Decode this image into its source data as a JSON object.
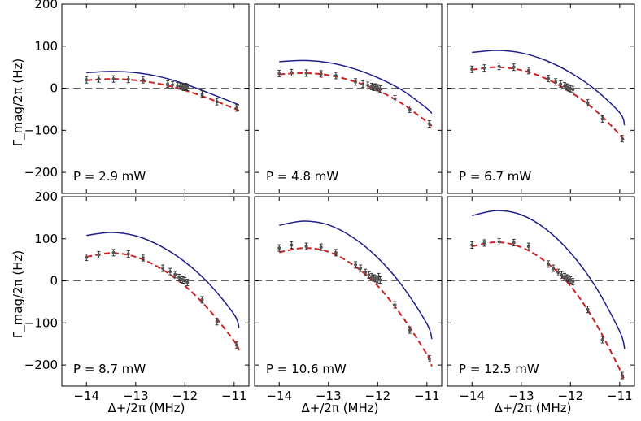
{
  "figure": {
    "ylabel": "Γ_mag/2π (Hz)",
    "xlabel": "Δ+/2π (MHz)"
  },
  "chart_data": [
    {
      "type": "line",
      "power_label": "P = 2.9 mW",
      "xlim": [
        -14.5,
        -10.7
      ],
      "ylim": [
        -250,
        200
      ],
      "x_ticks": [
        -14,
        -13,
        -12,
        -11
      ],
      "y_ticks": [
        -200,
        -100,
        0,
        100,
        200
      ],
      "series": [
        {
          "style": "solid",
          "color": "#1f1f8a",
          "x": [
            -14.0,
            -13.5,
            -13.0,
            -12.5,
            -12.0,
            -11.5,
            -11.0,
            -10.9
          ],
          "y": [
            37,
            40,
            37,
            27,
            10,
            -12,
            -35,
            -40
          ]
        },
        {
          "style": "dashed",
          "color": "#cc2222",
          "x": [
            -14.0,
            -13.5,
            -13.0,
            -12.5,
            -12.0,
            -11.5,
            -11.0,
            -10.9
          ],
          "y": [
            19,
            22,
            19,
            10,
            -5,
            -25,
            -48,
            -53
          ]
        },
        {
          "style": "points",
          "color": "#555555",
          "x": [
            -14.0,
            -13.75,
            -13.45,
            -13.15,
            -12.85,
            -12.35,
            -12.25,
            -12.15,
            -12.1,
            -12.05,
            -12.02,
            -11.98,
            -11.95,
            -11.65,
            -11.35,
            -10.95
          ],
          "y": [
            20,
            22,
            22,
            21,
            20,
            10,
            8,
            6,
            5,
            3,
            2,
            4,
            2,
            -14,
            -32,
            -47
          ]
        }
      ]
    },
    {
      "type": "line",
      "power_label": "P = 4.8 mW",
      "xlim": [
        -14.5,
        -10.7
      ],
      "ylim": [
        -250,
        200
      ],
      "x_ticks": [
        -14,
        -13,
        -12,
        -11
      ],
      "y_ticks": [
        -200,
        -100,
        0,
        100,
        200
      ],
      "series": [
        {
          "style": "solid",
          "color": "#1f1f8a",
          "x": [
            -14.0,
            -13.5,
            -13.0,
            -12.5,
            -12.0,
            -11.5,
            -11.0,
            -10.9
          ],
          "y": [
            63,
            66,
            61,
            47,
            25,
            -5,
            -48,
            -60
          ]
        },
        {
          "style": "dashed",
          "color": "#cc2222",
          "x": [
            -14.0,
            -13.5,
            -13.0,
            -12.5,
            -12.0,
            -11.5,
            -11.0,
            -10.9
          ],
          "y": [
            33,
            36,
            31,
            17,
            -5,
            -37,
            -80,
            -90
          ]
        },
        {
          "style": "points",
          "color": "#555555",
          "x": [
            -14.0,
            -13.75,
            -13.45,
            -13.15,
            -12.85,
            -12.45,
            -12.3,
            -12.2,
            -12.12,
            -12.08,
            -12.04,
            -12.0,
            -11.95,
            -11.65,
            -11.35,
            -10.95
          ],
          "y": [
            35,
            37,
            36,
            34,
            30,
            15,
            10,
            7,
            4,
            2,
            3,
            1,
            -2,
            -25,
            -50,
            -85
          ]
        }
      ]
    },
    {
      "type": "line",
      "power_label": "P = 6.7 mW",
      "xlim": [
        -14.5,
        -10.7
      ],
      "ylim": [
        -250,
        200
      ],
      "x_ticks": [
        -14,
        -13,
        -12,
        -11
      ],
      "y_ticks": [
        -200,
        -100,
        0,
        100,
        200
      ],
      "series": [
        {
          "style": "solid",
          "color": "#1f1f8a",
          "x": [
            -14.0,
            -13.5,
            -13.0,
            -12.5,
            -12.0,
            -11.5,
            -11.0,
            -10.9
          ],
          "y": [
            85,
            90,
            84,
            66,
            37,
            -3,
            -58,
            -88
          ]
        },
        {
          "style": "dashed",
          "color": "#cc2222",
          "x": [
            -14.0,
            -13.5,
            -13.0,
            -12.5,
            -12.0,
            -11.5,
            -11.0,
            -10.9
          ],
          "y": [
            44,
            50,
            43,
            23,
            -9,
            -52,
            -110,
            -128
          ]
        },
        {
          "style": "points",
          "color": "#555555",
          "x": [
            -14.0,
            -13.75,
            -13.45,
            -13.15,
            -12.85,
            -12.45,
            -12.3,
            -12.2,
            -12.12,
            -12.08,
            -12.04,
            -12.0,
            -11.95,
            -11.65,
            -11.35,
            -10.95
          ],
          "y": [
            45,
            48,
            52,
            50,
            42,
            23,
            15,
            10,
            6,
            3,
            1,
            -1,
            -3,
            -35,
            -73,
            -120
          ]
        }
      ]
    },
    {
      "type": "line",
      "power_label": "P = 8.7 mW",
      "xlim": [
        -14.5,
        -10.7
      ],
      "ylim": [
        -250,
        200
      ],
      "x_ticks": [
        -14,
        -13,
        -12,
        -11
      ],
      "y_ticks": [
        -200,
        -100,
        0,
        100,
        200
      ],
      "series": [
        {
          "style": "solid",
          "color": "#1f1f8a",
          "x": [
            -14.0,
            -13.5,
            -13.0,
            -12.5,
            -12.0,
            -11.5,
            -11.0,
            -10.9
          ],
          "y": [
            108,
            115,
            107,
            83,
            45,
            -8,
            -80,
            -112
          ]
        },
        {
          "style": "dashed",
          "color": "#cc2222",
          "x": [
            -14.0,
            -13.5,
            -13.0,
            -12.5,
            -12.0,
            -11.5,
            -11.0,
            -10.9
          ],
          "y": [
            57,
            66,
            57,
            30,
            -12,
            -70,
            -143,
            -165
          ]
        },
        {
          "style": "points",
          "color": "#555555",
          "x": [
            -14.0,
            -13.75,
            -13.45,
            -13.15,
            -12.85,
            -12.45,
            -12.3,
            -12.2,
            -12.12,
            -12.08,
            -12.04,
            -12.0,
            -11.95,
            -11.65,
            -11.35,
            -10.95
          ],
          "y": [
            56,
            62,
            67,
            64,
            55,
            30,
            22,
            15,
            8,
            4,
            2,
            0,
            -4,
            -45,
            -97,
            -153
          ]
        }
      ]
    },
    {
      "type": "line",
      "power_label": "P = 10.6 mW",
      "xlim": [
        -14.5,
        -10.7
      ],
      "ylim": [
        -250,
        200
      ],
      "x_ticks": [
        -14,
        -13,
        -12,
        -11
      ],
      "y_ticks": [
        -200,
        -100,
        0,
        100,
        200
      ],
      "series": [
        {
          "style": "solid",
          "color": "#1f1f8a",
          "x": [
            -14.0,
            -13.5,
            -13.0,
            -12.5,
            -12.0,
            -11.5,
            -11.0,
            -10.9
          ],
          "y": [
            132,
            142,
            133,
            103,
            55,
            -12,
            -102,
            -138
          ]
        },
        {
          "style": "dashed",
          "color": "#cc2222",
          "x": [
            -14.0,
            -13.5,
            -13.0,
            -12.5,
            -12.0,
            -11.5,
            -11.0,
            -10.9
          ],
          "y": [
            68,
            78,
            69,
            38,
            -12,
            -85,
            -175,
            -203
          ]
        },
        {
          "style": "points",
          "color": "#555555",
          "x": [
            -14.0,
            -13.75,
            -13.45,
            -13.15,
            -12.85,
            -12.45,
            -12.35,
            -12.25,
            -12.18,
            -12.12,
            -12.08,
            -12.04,
            -12.0,
            -11.98,
            -11.95,
            -11.65,
            -11.35,
            -10.95
          ],
          "y": [
            78,
            85,
            82,
            80,
            67,
            38,
            30,
            20,
            14,
            10,
            7,
            5,
            3,
            10,
            2,
            -57,
            -117,
            -185
          ]
        }
      ]
    },
    {
      "type": "line",
      "power_label": "P = 12.5 mW",
      "xlim": [
        -14.5,
        -10.7
      ],
      "ylim": [
        -250,
        200
      ],
      "x_ticks": [
        -14,
        -13,
        -12,
        -11
      ],
      "y_ticks": [
        -200,
        -100,
        0,
        100,
        200
      ],
      "series": [
        {
          "style": "solid",
          "color": "#1f1f8a",
          "x": [
            -14.0,
            -13.5,
            -13.0,
            -12.5,
            -12.0,
            -11.5,
            -11.0,
            -10.9
          ],
          "y": [
            155,
            167,
            157,
            123,
            67,
            -12,
            -120,
            -162
          ]
        },
        {
          "style": "dashed",
          "color": "#cc2222",
          "x": [
            -14.0,
            -13.5,
            -13.0,
            -12.5,
            -12.0,
            -11.5,
            -11.0,
            -10.9
          ],
          "y": [
            82,
            92,
            80,
            45,
            -12,
            -98,
            -210,
            -238
          ]
        },
        {
          "style": "points",
          "color": "#555555",
          "x": [
            -14.0,
            -13.75,
            -13.45,
            -13.15,
            -12.85,
            -12.45,
            -12.35,
            -12.25,
            -12.18,
            -12.12,
            -12.08,
            -12.04,
            -12.0,
            -11.95,
            -11.65,
            -11.35,
            -10.95
          ],
          "y": [
            85,
            90,
            93,
            91,
            82,
            40,
            30,
            20,
            14,
            10,
            7,
            5,
            2,
            -2,
            -68,
            -140,
            -225
          ]
        }
      ]
    }
  ]
}
